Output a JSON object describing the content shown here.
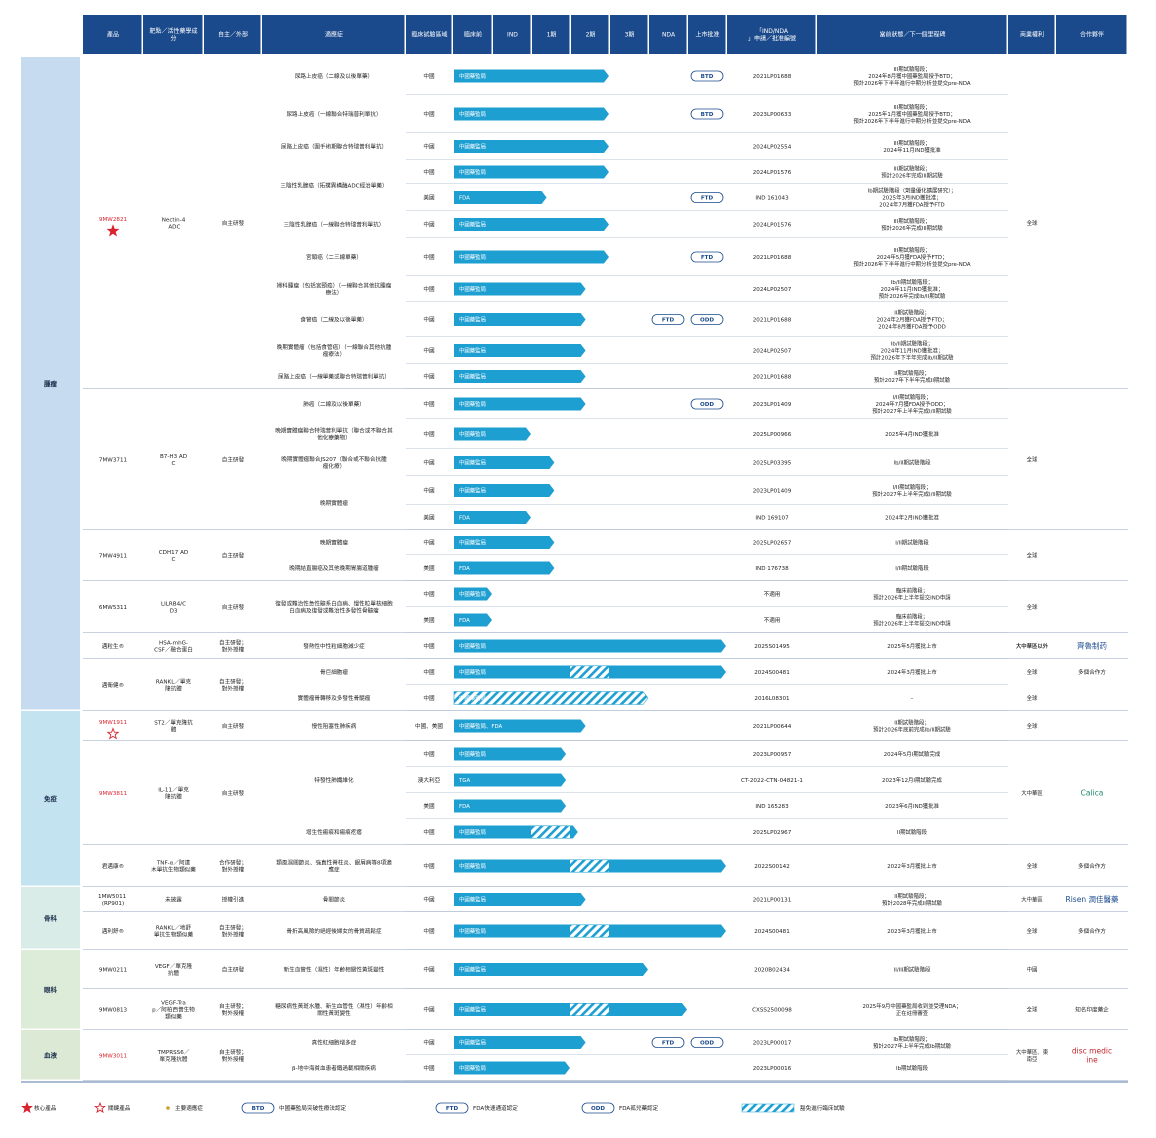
{
  "chart_data": {
    "type": "table",
    "colors": {
      "header": "#1b4a8c",
      "bar": "#1e9fd1",
      "area_tumor": "#c7dbf0",
      "area_immune": "#c4e3f1",
      "area_ortho": "#d9ece8",
      "area_eye": "#ddecd9",
      "area_blood": "#dcead5",
      "accent_red": "#d9232d",
      "gold": "#c9a227"
    },
    "headers": [
      "產品",
      "靶點／活性藥學成分",
      "自主／外部",
      "適應症",
      "臨床試驗區域",
      "臨床前",
      "IND",
      "1期",
      "2期",
      "3期",
      "NDA",
      "上市批准",
      "「IND/NDA」申請／批准編號",
      "當前狀態／下一個里程碑",
      "商業權利",
      "合作夥伴"
    ],
    "areas": [
      {
        "label": "腫瘤"
      },
      {
        "label": "免疫"
      },
      {
        "label": "骨科"
      },
      {
        "label": "眼科"
      },
      {
        "label": "血液"
      }
    ],
    "products": [
      {
        "name": "9MW2821",
        "target": "Nectin-4 ADC",
        "source": "自主研發",
        "rights": "全球",
        "partner": "",
        "red": true,
        "icon": "star-filled"
      },
      {
        "name": "7MW3711",
        "target": "B7-H3 ADC",
        "source": "自主研發",
        "rights": "全球",
        "partner": "",
        "red": false,
        "icon": ""
      },
      {
        "name": "7MW4911",
        "target": "CDH17 ADC",
        "source": "自主研發",
        "rights": "全球",
        "partner": "",
        "red": false,
        "icon": ""
      },
      {
        "name": "6MW5311",
        "target": "LILRB4/CD3",
        "source": "自主研發",
        "rights": "全球",
        "partner": "",
        "red": false,
        "icon": ""
      },
      {
        "name": "邁粒生®",
        "target": "HSA-mhG-CSF／融合蛋白",
        "source": "自主研發；對外授權",
        "rights": "大中華區以外",
        "partner": "齊魯制药",
        "red": false,
        "icon": ""
      },
      {
        "name": "邁衛健®",
        "target": "RANKL／單克隆抗體",
        "source": "自主研發；對外授權",
        "rights": "",
        "partner": "",
        "red": false,
        "icon": ""
      },
      {
        "name": "9MW1911",
        "target": "ST2／單克隆抗體",
        "source": "自主研發",
        "rights": "全球",
        "partner": "",
        "red": true,
        "icon": "star-outline"
      },
      {
        "name": "9MW3811",
        "target": "IL-11／單克隆抗體",
        "source": "自主研發",
        "rights": "大中華區",
        "partner": "Calica",
        "red": true,
        "icon": ""
      },
      {
        "name": "君邁康®",
        "target": "TNF-α／阿達木單抗生物類似藥",
        "source": "合作研發；對外授權",
        "rights": "全球",
        "partner": "多個合作方",
        "red": false,
        "icon": ""
      },
      {
        "name": "1MW5011 (RP901)",
        "target": "未披露",
        "source": "授權引進",
        "rights": "大中華區",
        "partner": "Risen 潤佳醫藥",
        "red": false,
        "icon": ""
      },
      {
        "name": "邁利舒®",
        "target": "RANKL／地舒單抗生物類似藥",
        "source": "自主研發；對外授權",
        "rights": "全球",
        "partner": "多個合作方",
        "red": false,
        "icon": ""
      },
      {
        "name": "9MW0211",
        "target": "VEGF／單克隆抗體",
        "source": "自主研發",
        "rights": "中國",
        "partner": "",
        "red": false,
        "icon": ""
      },
      {
        "name": "9MW0813",
        "target": "VEGF-Trap／阿柏西普生物類似藥",
        "source": "自主研發；對外授權",
        "rights": "全球",
        "partner": "知名印度藥企",
        "red": false,
        "icon": ""
      },
      {
        "name": "9MW3011",
        "target": "TMPRSS6／單克隆抗體",
        "source": "自主研發；對外授權",
        "rights": "大中華區、東南亞",
        "partner": "disc medicine",
        "red": true,
        "icon": ""
      }
    ],
    "rows": [
      {
        "ind": "尿路上皮癌（二線及以後單藥）",
        "reg": "中國",
        "lab": "中國藥監局",
        "phase": 4.0,
        "hatch": null,
        "badges": [
          "BTD"
        ],
        "no": "2021LP01688",
        "st": "III期試驗階段；2024年8月獲中國藥監局授予BTD；預計2026年下半年進行中期分析並提交pre-NDA",
        "rights": "",
        "partner": ""
      },
      {
        "ind": "尿路上皮癌（一線聯合特瑞普利單抗）",
        "reg": "中國",
        "lab": "中國藥監局",
        "phase": 4.0,
        "hatch": null,
        "badges": [
          "BTD"
        ],
        "no": "2023LP00633",
        "st": "III期試驗階段；2025年1月獲中國藥監局授予BTD；預計2026年下半年進行中期分析並提交pre-NDA",
        "rights": "",
        "partner": ""
      },
      {
        "ind": "尿路上皮癌（圍手術期聯合特瑞普利單抗）",
        "reg": "中國",
        "lab": "中國藥監局",
        "phase": 4.0,
        "hatch": null,
        "badges": [],
        "no": "2024LP02554",
        "st": "III期試驗階段；2024年11月IND獲批准",
        "rights": "",
        "partner": ""
      },
      {
        "ind": "三陰性乳腺癌（拓撲異構酶ADC經治單藥）",
        "reg": "中國",
        "lab": "中國藥監局",
        "phase": 4.0,
        "hatch": null,
        "badges": [],
        "no": "2024LP01576",
        "st": "III期試驗階段；預計2026年完成III期試驗",
        "rights": "",
        "partner": ""
      },
      {
        "ind": "",
        "reg": "美國",
        "lab": "FDA",
        "phase": 2.4,
        "hatch": null,
        "badges": [
          "FTD"
        ],
        "no": "IND 161043",
        "st": "Ib期試驗階段（劑量優化擴展研究）；2025年3月IND獲批准；2024年7月獲FDA授予FTD",
        "rights": "",
        "partner": ""
      },
      {
        "ind": "三陰性乳腺癌（一線聯合特瑞普利單抗）",
        "reg": "中國",
        "lab": "中國藥監局",
        "phase": 4.0,
        "hatch": null,
        "badges": [],
        "no": "2024LP01576",
        "st": "III期試驗階段；預計2026年完成III期試驗",
        "rights": "",
        "partner": ""
      },
      {
        "ind": "宮頸癌（二三線單藥）",
        "reg": "中國",
        "lab": "中國藥監局",
        "phase": 4.0,
        "hatch": null,
        "badges": [
          "FTD"
        ],
        "no": "2021LP01688",
        "st": "III期試驗階段；2024年5月獲FDA授予FTD；預計2026年下半年進行中期分析並提交pre-NDA",
        "rights": "",
        "partner": ""
      },
      {
        "ind": "婦科腫瘤（包括宮頸癌）（一線聯合其他抗腫瘤療法）",
        "reg": "中國",
        "lab": "中國藥監局",
        "phase": 3.4,
        "hatch": null,
        "badges": [],
        "no": "2024LP02507",
        "st": "Ib/II期試驗階段；2024年11月IND獲批准；預計2026年完成Ib/II期試驗",
        "rights": "",
        "partner": ""
      },
      {
        "ind": "食管癌（二線及以後單藥）",
        "reg": "中國",
        "lab": "中國藥監局",
        "phase": 3.4,
        "hatch": null,
        "badges": [
          "FTD",
          "ODD"
        ],
        "no": "2021LP01688",
        "st": "II期試驗階段；2024年2月獲FDA授予FTD；2024年8月獲FDA授予ODD",
        "rights": "",
        "partner": ""
      },
      {
        "ind": "晚期實體瘤（包括食管癌）（一線聯合其他抗腫瘤療法）",
        "reg": "中國",
        "lab": "中國藥監局",
        "phase": 3.4,
        "hatch": null,
        "badges": [],
        "no": "2024LP02507",
        "st": "Ib/II期試驗階段；2024年11月IND獲批准；預計2026年下半年完成Ib/II期試驗",
        "rights": "",
        "partner": ""
      },
      {
        "ind": "尿路上皮癌（一線單藥或聯合特瑞普利單抗）",
        "reg": "中國",
        "lab": "中國藥監局",
        "phase": 3.4,
        "hatch": null,
        "badges": [],
        "no": "2021LP01688",
        "st": "II期試驗階段；預計2027年下半年完成II期試驗",
        "rights": "",
        "partner": ""
      },
      {
        "ind": "肺癌（二線及以後單藥）",
        "reg": "中國",
        "lab": "中國藥監局",
        "phase": 3.4,
        "hatch": null,
        "badges": [
          "ODD"
        ],
        "no": "2023LP01409",
        "st": "I/II期試驗階段；2024年7月獲FDA授予ODD；預計2027年上半年完成I/II期試驗",
        "rights": "",
        "partner": ""
      },
      {
        "ind": "晚期實體瘤聯合特瑞普利單抗（聯合或不聯合其他化療藥物）",
        "reg": "中國",
        "lab": "中國藥監局",
        "phase": 2.0,
        "hatch": null,
        "badges": [],
        "no": "2025LP00966",
        "st": "2025年4月IND獲批准",
        "rights": "",
        "partner": ""
      },
      {
        "ind": "晚期實體瘤聯合JS207（聯合或不聯合抗腫瘤化療）",
        "reg": "中國",
        "lab": "中國藥監局",
        "phase": 2.6,
        "hatch": null,
        "badges": [],
        "no": "2025LP03395",
        "st": "Ib/II期試驗階段",
        "rights": "",
        "partner": ""
      },
      {
        "ind": "晚期實體瘤",
        "reg": "中國",
        "lab": "中國藥監局",
        "phase": 2.6,
        "hatch": null,
        "badges": [],
        "no": "2023LP01409",
        "st": "I/II期試驗階段；預計2027年上半年完成I/II期試驗",
        "rights": "",
        "partner": ""
      },
      {
        "ind": "",
        "reg": "美國",
        "lab": "FDA",
        "phase": 2.0,
        "hatch": null,
        "badges": [],
        "no": "IND 169107",
        "st": "2024年2月IND獲批准",
        "rights": "",
        "partner": ""
      },
      {
        "ind": "晚期實體瘤",
        "reg": "中國",
        "lab": "中國藥監局",
        "phase": 2.6,
        "hatch": null,
        "badges": [],
        "no": "2025LP02657",
        "st": "I/II期試驗階段",
        "rights": "",
        "partner": ""
      },
      {
        "ind": "晚期結直腸癌及其他晚期胃腸道腫瘤",
        "reg": "美國",
        "lab": "FDA",
        "phase": 2.6,
        "hatch": null,
        "badges": [],
        "no": "IND 176738",
        "st": "I/II期試驗階段",
        "rights": "",
        "partner": ""
      },
      {
        "ind": "復發或難治性急性髓系白血病、慢性粒單核細胞白血病及復發或難治性多發性骨髓瘤",
        "reg": "中國",
        "lab": "中國藥監局",
        "phase": 1.0,
        "hatch": null,
        "badges": [],
        "no": "不適用",
        "st": "臨床前階段；預計2026年上半年提交IND申請",
        "rights": "",
        "partner": ""
      },
      {
        "ind": "",
        "reg": "美國",
        "lab": "FDA",
        "phase": 1.0,
        "hatch": null,
        "badges": [],
        "no": "不適用",
        "st": "臨床前階段；預計2026年上半年提交IND申請",
        "rights": "",
        "partner": ""
      },
      {
        "ind": "發熱性中性粒細胞減少症",
        "reg": "中國",
        "lab": "中國藥監局",
        "phase": 7.0,
        "hatch": null,
        "badges": [],
        "no": "2025S01495",
        "st": "2025年5月獲批上市",
        "rights": "大中華區以外",
        "partner": ""
      },
      {
        "ind": "骨巨細胞瘤",
        "reg": "中國",
        "lab": "中國藥監局",
        "phase": 7.0,
        "hatch": [
          3,
          4
        ],
        "badges": [],
        "no": "2024S00481",
        "st": "2024年3月獲批上市",
        "rights": "全球",
        "partner": "多個合作方"
      },
      {
        "ind": "實體瘤骨轉移及多發性骨髓瘤",
        "reg": "中國",
        "lab": "中國藥監局",
        "phase": 5.0,
        "hatch": [
          0,
          5
        ],
        "badges": [],
        "no": "2016L08301",
        "st": "–",
        "rights": "全球",
        "partner": ""
      },
      {
        "ind": "慢性阻塞性肺疾病",
        "reg": "中國、美國",
        "lab": "中國藥監局、FDA",
        "phase": 3.4,
        "hatch": null,
        "badges": [],
        "no": "2021LP00644",
        "st": "II期試驗階段；預計2026年底前完成Ib/II期試驗",
        "rights": "",
        "partner": ""
      },
      {
        "ind": "特發性肺纖維化",
        "reg": "中國",
        "lab": "中國藥監局",
        "phase": 2.9,
        "hatch": null,
        "badges": [],
        "no": "2023LP00957",
        "st": "2024年5月I期試驗完成",
        "rights": "",
        "partner": ""
      },
      {
        "ind": "",
        "reg": "澳大利亞",
        "lab": "TGA",
        "phase": 2.9,
        "hatch": null,
        "badges": [],
        "no": "CT-2022-CTN-04821-1",
        "st": "2023年12月I期試驗完成",
        "rights": "",
        "partner": ""
      },
      {
        "ind": "",
        "reg": "美國",
        "lab": "FDA",
        "phase": 2.9,
        "hatch": null,
        "badges": [],
        "no": "IND 165283",
        "st": "2023年6月IND獲批准",
        "rights": "",
        "partner": ""
      },
      {
        "ind": "增生性瘢痕和瘢痕疙瘩",
        "reg": "中國",
        "lab": "中國藥監局",
        "phase": 3.2,
        "hatch": [
          2,
          3
        ],
        "badges": [],
        "no": "2025LP02967",
        "st": "II期試驗階段",
        "rights": "",
        "partner": ""
      },
      {
        "ind": "類風濕關節炎、強直性脊柱炎、銀屑病等8項適應症",
        "reg": "中國",
        "lab": "中國藥監局",
        "phase": 7.0,
        "hatch": [
          3,
          4
        ],
        "badges": [],
        "no": "2022S00142",
        "st": "2022年3月獲批上市",
        "rights": "",
        "partner": ""
      },
      {
        "ind": "骨關節炎",
        "reg": "中國",
        "lab": "中國藥監局",
        "phase": 3.4,
        "hatch": null,
        "badges": [],
        "no": "2021LP00131",
        "st": "II期試驗階段；預計2028年完成II期試驗",
        "rights": "",
        "partner": ""
      },
      {
        "ind": "骨折高風險的絕經後婦女的骨質疏鬆症",
        "reg": "中國",
        "lab": "中國藥監局",
        "phase": 7.0,
        "hatch": [
          3,
          4
        ],
        "badges": [],
        "no": "2024S00481",
        "st": "2023年3月獲批上市",
        "rights": "",
        "partner": ""
      },
      {
        "ind": "新生血管性（濕性）年齡相關性黃斑變性",
        "reg": "中國",
        "lab": "中國藥監局",
        "phase": 5.0,
        "hatch": null,
        "badges": [],
        "no": "2020B02434",
        "st": "II/III期試驗階段",
        "rights": "",
        "partner": ""
      },
      {
        "ind": "糖尿病性黃斑水腫、新生血管性（濕性）年齡相關性黃斑變性",
        "reg": "中國",
        "lab": "中國藥監局",
        "phase": 6.0,
        "hatch": [
          3,
          4
        ],
        "badges": [],
        "no": "CXSS2500098",
        "st": "2025年9月中國藥監局收到並受理NDA；正在註冊審查",
        "rights": "",
        "partner": ""
      },
      {
        "ind": "真性紅細胞增多症",
        "reg": "中國",
        "lab": "中國藥監局",
        "phase": 3.4,
        "hatch": null,
        "badges": [
          "FTD",
          "ODD"
        ],
        "no": "2023LP00017",
        "st": "Ib期試驗階段；預計2027年上半年完成Ib期試驗",
        "rights": "",
        "partner": ""
      },
      {
        "ind": "β-地中海貧血患者鐵過載相關疾病",
        "reg": "中國",
        "lab": "中國藥監局",
        "phase": 3.0,
        "hatch": null,
        "badges": [],
        "no": "2023LP00016",
        "st": "Ib期試驗階段",
        "rights": "",
        "partner": ""
      }
    ],
    "legend": [
      {
        "label": "核心產品"
      },
      {
        "label": "關鍵產品"
      },
      {
        "label": "主要適應症"
      },
      {
        "badge": "BTD",
        "label": "中國藥監局突破性療法認定"
      },
      {
        "badge": "FTD",
        "label": "FDA快速通道認定"
      },
      {
        "badge": "ODD",
        "label": "FDA孤兒藥認定"
      },
      {
        "label": "豁免進行臨床試驗"
      }
    ]
  }
}
